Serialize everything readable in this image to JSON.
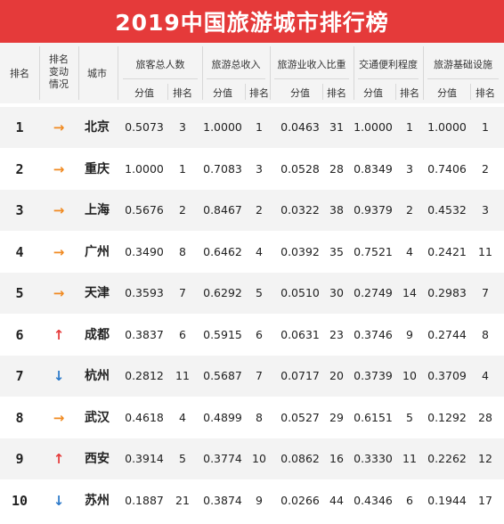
{
  "title": "2019中国旅游城市排行榜",
  "headers": {
    "rank": "排名",
    "change": [
      "排名",
      "变动",
      "情况"
    ],
    "city": "城市",
    "groups": [
      "旅客总人数",
      "旅游总收入",
      "旅游业收入比重",
      "交通便利程度",
      "旅游基础设施"
    ],
    "score": "分值",
    "sub_rank": "排名"
  },
  "colors": {
    "banner": "#e53a3a",
    "up": "#e53a3a",
    "down": "#2b79c9",
    "same": "#f08a22"
  },
  "chart_data": {
    "type": "table",
    "columns": [
      "排名",
      "排名变动情况",
      "城市",
      "旅客总人数 分值",
      "旅客总人数 排名",
      "旅游总收入 分值",
      "旅游总收入 排名",
      "旅游业收入比重 分值",
      "旅游业收入比重 排名",
      "交通便利程度 分值",
      "交通便利程度 排名",
      "旅游基础设施 分值",
      "旅游基础设施 排名"
    ],
    "rows": [
      {
        "rank": "1",
        "change": "same",
        "city": "北京",
        "v": [
          "0.5073",
          "3",
          "1.0000",
          "1",
          "0.0463",
          "31",
          "1.0000",
          "1",
          "1.0000",
          "1"
        ]
      },
      {
        "rank": "2",
        "change": "same",
        "city": "重庆",
        "v": [
          "1.0000",
          "1",
          "0.7083",
          "3",
          "0.0528",
          "28",
          "0.8349",
          "3",
          "0.7406",
          "2"
        ]
      },
      {
        "rank": "3",
        "change": "same",
        "city": "上海",
        "v": [
          "0.5676",
          "2",
          "0.8467",
          "2",
          "0.0322",
          "38",
          "0.9379",
          "2",
          "0.4532",
          "3"
        ]
      },
      {
        "rank": "4",
        "change": "same",
        "city": "广州",
        "v": [
          "0.3490",
          "8",
          "0.6462",
          "4",
          "0.0392",
          "35",
          "0.7521",
          "4",
          "0.2421",
          "11"
        ]
      },
      {
        "rank": "5",
        "change": "same",
        "city": "天津",
        "v": [
          "0.3593",
          "7",
          "0.6292",
          "5",
          "0.0510",
          "30",
          "0.2749",
          "14",
          "0.2983",
          "7"
        ]
      },
      {
        "rank": "6",
        "change": "up",
        "city": "成都",
        "v": [
          "0.3837",
          "6",
          "0.5915",
          "6",
          "0.0631",
          "23",
          "0.3746",
          "9",
          "0.2744",
          "8"
        ]
      },
      {
        "rank": "7",
        "change": "down",
        "city": "杭州",
        "v": [
          "0.2812",
          "11",
          "0.5687",
          "7",
          "0.0717",
          "20",
          "0.3739",
          "10",
          "0.3709",
          "4"
        ]
      },
      {
        "rank": "8",
        "change": "same",
        "city": "武汉",
        "v": [
          "0.4618",
          "4",
          "0.4899",
          "8",
          "0.0527",
          "29",
          "0.6151",
          "5",
          "0.1292",
          "28"
        ]
      },
      {
        "rank": "9",
        "change": "up",
        "city": "西安",
        "v": [
          "0.3914",
          "5",
          "0.3774",
          "10",
          "0.0862",
          "16",
          "0.3330",
          "11",
          "0.2262",
          "12"
        ]
      },
      {
        "rank": "10",
        "change": "down",
        "city": "苏州",
        "v": [
          "0.1887",
          "21",
          "0.3874",
          "9",
          "0.0266",
          "44",
          "0.4346",
          "6",
          "0.1944",
          "17"
        ]
      }
    ],
    "arrows": {
      "up": "↑",
      "down": "↓",
      "same": "→"
    }
  }
}
